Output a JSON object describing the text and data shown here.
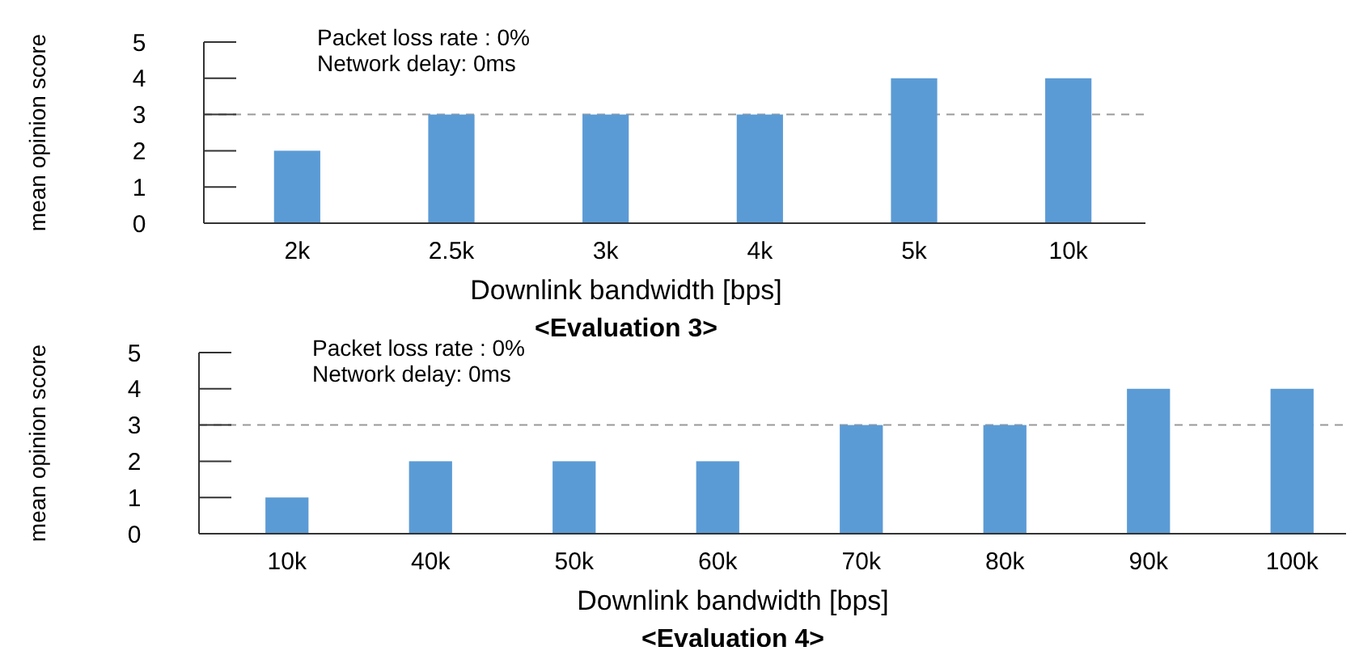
{
  "chart_data": [
    {
      "type": "bar",
      "title": "<Evaluation 3>",
      "xlabel": "Downlink bandwidth [bps]",
      "ylabel": "mean opinion score",
      "categories": [
        "2k",
        "2.5k",
        "3k",
        "4k",
        "5k",
        "10k"
      ],
      "values": [
        2,
        3,
        3,
        3,
        4,
        4
      ],
      "color": "#5b9bd5",
      "ylim": [
        0,
        5
      ],
      "yticks": [
        0,
        1,
        2,
        3,
        4,
        5
      ],
      "ref_lines": [
        {
          "axis": "y",
          "value": 3,
          "color": "#999999",
          "line_style": "dashed"
        }
      ],
      "annotations": [
        "Packet loss rate : 0%",
        "Network delay: 0ms"
      ]
    },
    {
      "type": "bar",
      "title": "<Evaluation 4>",
      "xlabel": "Downlink bandwidth [bps]",
      "ylabel": "mean opinion score",
      "categories": [
        "10k",
        "40k",
        "50k",
        "60k",
        "70k",
        "80k",
        "90k",
        "100k"
      ],
      "values": [
        1,
        2,
        2,
        2,
        3,
        3,
        4,
        4
      ],
      "color": "#5b9bd5",
      "ylim": [
        0,
        5
      ],
      "yticks": [
        0,
        1,
        2,
        3,
        4,
        5
      ],
      "ref_lines": [
        {
          "axis": "y",
          "value": 3,
          "color": "#999999",
          "line_style": "dashed"
        }
      ],
      "annotations": [
        "Packet loss rate : 0%",
        "Network delay: 0ms"
      ]
    }
  ]
}
